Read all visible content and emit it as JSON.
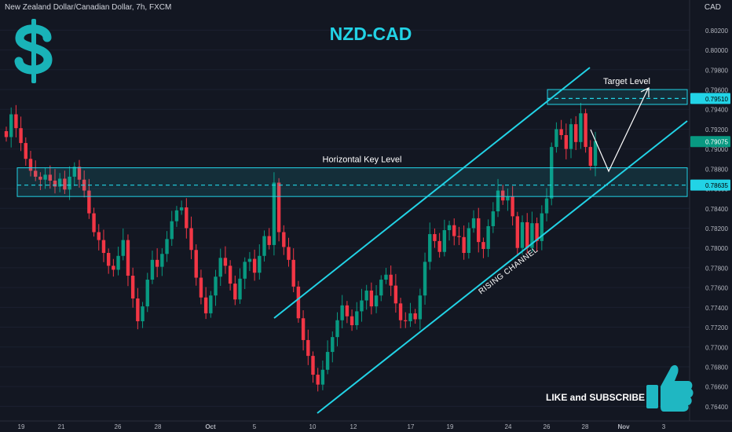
{
  "header": {
    "symbol": "New Zealand Dollar/Canadian Dollar, 7h, FXCM",
    "currency": "CAD"
  },
  "title": "NZD-CAD",
  "colors": {
    "up": "#089981",
    "down": "#f23645",
    "accent": "#22d3e6",
    "bg": "#131722",
    "text": "#d1d4dc"
  },
  "icons": {
    "logo": "dollar-sign-icon",
    "cta": "thumbs-up-icon"
  },
  "chart_data": {
    "type": "candlestick",
    "title": "NZD-CAD",
    "y_range": [
      0.763,
      0.8033
    ],
    "y_ticks": [
      "0.80200",
      "0.80000",
      "0.79800",
      "0.79600",
      "0.79400",
      "0.79200",
      "0.79000",
      "0.78800",
      "0.78600",
      "0.78400",
      "0.78200",
      "0.78000",
      "0.77800",
      "0.77600",
      "0.77400",
      "0.77200",
      "0.77000",
      "0.76800",
      "0.76600",
      "0.76400"
    ],
    "x_ticks": [
      "19",
      "21",
      "26",
      "28",
      "Oct",
      "5",
      "10",
      "12",
      "17",
      "19",
      "24",
      "26",
      "28",
      "Nov",
      "3"
    ],
    "price_labels": {
      "target": "0.79510",
      "current": "0.79075",
      "key": "0.78635"
    },
    "zones": [
      {
        "label": "Target Level",
        "low": 0.7945,
        "high": 0.796,
        "level": 0.7951
      },
      {
        "label": "Horizontal Key Level",
        "low": 0.7852,
        "high": 0.7881,
        "level": 0.78635
      }
    ],
    "channel": {
      "label": "RISING CHANNEL"
    },
    "cta": "LIKE and SUBSCRIBE",
    "closes": [
      0.7912,
      0.7935,
      0.7921,
      0.7906,
      0.789,
      0.7878,
      0.7872,
      0.7869,
      0.7874,
      0.7868,
      0.7862,
      0.787,
      0.7859,
      0.7872,
      0.7882,
      0.7869,
      0.7858,
      0.7835,
      0.7816,
      0.7808,
      0.7795,
      0.7782,
      0.7778,
      0.7792,
      0.7808,
      0.7772,
      0.7749,
      0.7726,
      0.7741,
      0.7768,
      0.7788,
      0.7781,
      0.7794,
      0.7809,
      0.7827,
      0.7838,
      0.7841,
      0.782,
      0.7798,
      0.777,
      0.775,
      0.7734,
      0.7752,
      0.7771,
      0.779,
      0.7782,
      0.7764,
      0.7748,
      0.7769,
      0.7786,
      0.7789,
      0.7775,
      0.7792,
      0.7812,
      0.7803,
      0.7866,
      0.7816,
      0.7801,
      0.7788,
      0.7761,
      0.7729,
      0.7707,
      0.7691,
      0.7672,
      0.7662,
      0.7677,
      0.7695,
      0.771,
      0.7727,
      0.7742,
      0.7731,
      0.7722,
      0.7736,
      0.7747,
      0.7757,
      0.7741,
      0.7752,
      0.7768,
      0.7773,
      0.7762,
      0.7744,
      0.7727,
      0.7726,
      0.7734,
      0.7728,
      0.7752,
      0.7786,
      0.7814,
      0.7807,
      0.7796,
      0.7818,
      0.7823,
      0.7812,
      0.7811,
      0.7795,
      0.782,
      0.783,
      0.7806,
      0.7799,
      0.7822,
      0.7837,
      0.7858,
      0.7848,
      0.7852,
      0.7832,
      0.78,
      0.7826,
      0.78,
      0.7825,
      0.7807,
      0.7835,
      0.785,
      0.7902,
      0.792,
      0.7914,
      0.79,
      0.7925,
      0.7907,
      0.7936,
      0.7902,
      0.7883,
      0.7908
    ]
  }
}
